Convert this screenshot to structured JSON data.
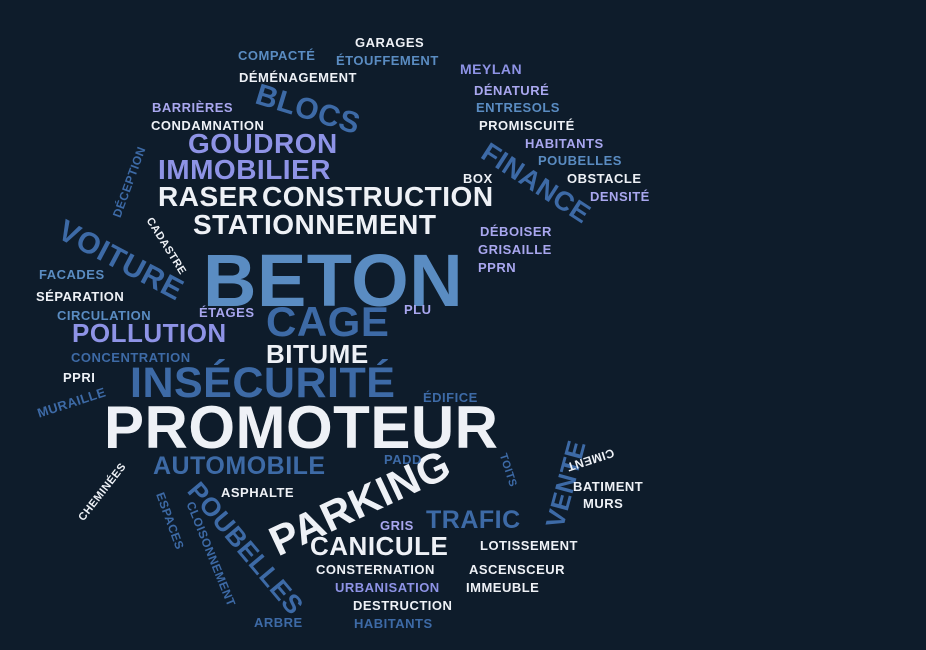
{
  "words": [
    {
      "text": "BETON"
    },
    {
      "text": "PROMOTEUR"
    },
    {
      "text": "INSÉCURITÉ"
    },
    {
      "text": "CAGE"
    },
    {
      "text": "PARKING"
    },
    {
      "text": "RASER"
    },
    {
      "text": "CONSTRUCTION"
    },
    {
      "text": "STATIONNEMENT"
    },
    {
      "text": "IMMOBILIER"
    },
    {
      "text": "GOUDRON"
    },
    {
      "text": "BLOCS"
    },
    {
      "text": "VOITURE"
    },
    {
      "text": "FINANCE"
    },
    {
      "text": "POLLUTION"
    },
    {
      "text": "BITUME"
    },
    {
      "text": "AUTOMOBILE"
    },
    {
      "text": "POUBELLES"
    },
    {
      "text": "CANICULE"
    },
    {
      "text": "TRAFIC"
    },
    {
      "text": "VENTE"
    },
    {
      "text": "COMPACTÉ"
    },
    {
      "text": "GARAGES"
    },
    {
      "text": "ÉTOUFFEMENT"
    },
    {
      "text": "DÉMÉNAGEMENT"
    },
    {
      "text": "MEYLAN"
    },
    {
      "text": "DÉNATURÉ"
    },
    {
      "text": "BARRIÈRES"
    },
    {
      "text": "ENTRESOLS"
    },
    {
      "text": "CONDAMNATION"
    },
    {
      "text": "PROMISCUITÉ"
    },
    {
      "text": "HABITANTS"
    },
    {
      "text": "POUBELLES"
    },
    {
      "text": "DÉCEPTION"
    },
    {
      "text": "BOX"
    },
    {
      "text": "OBSTACLE"
    },
    {
      "text": "DENSITÉ"
    },
    {
      "text": "DÉBOISER"
    },
    {
      "text": "CADASTRE"
    },
    {
      "text": "GRISAILLE"
    },
    {
      "text": "PPRN"
    },
    {
      "text": "FACADES"
    },
    {
      "text": "SÉPARATION"
    },
    {
      "text": "CIRCULATION"
    },
    {
      "text": "ÉTAGES"
    },
    {
      "text": "PLU"
    },
    {
      "text": "CONCENTRATION"
    },
    {
      "text": "PPRI"
    },
    {
      "text": "MURAILLE"
    },
    {
      "text": "ÉDIFICE"
    },
    {
      "text": "PADD"
    },
    {
      "text": "CIMENT"
    },
    {
      "text": "TOITS"
    },
    {
      "text": "BATIMENT"
    },
    {
      "text": "MURS"
    },
    {
      "text": "CHEMINÉES"
    },
    {
      "text": "ASPHALTE"
    },
    {
      "text": "ESPACES"
    },
    {
      "text": "CLOISONNEMENT"
    },
    {
      "text": "GRIS"
    },
    {
      "text": "LOTISSEMENT"
    },
    {
      "text": "CONSTERNATION"
    },
    {
      "text": "ASCENSCEUR"
    },
    {
      "text": "URBANISATION"
    },
    {
      "text": "IMMEUBLE"
    },
    {
      "text": "DESTRUCTION"
    },
    {
      "text": "ARBRE"
    },
    {
      "text": "HABITANTS"
    }
  ]
}
